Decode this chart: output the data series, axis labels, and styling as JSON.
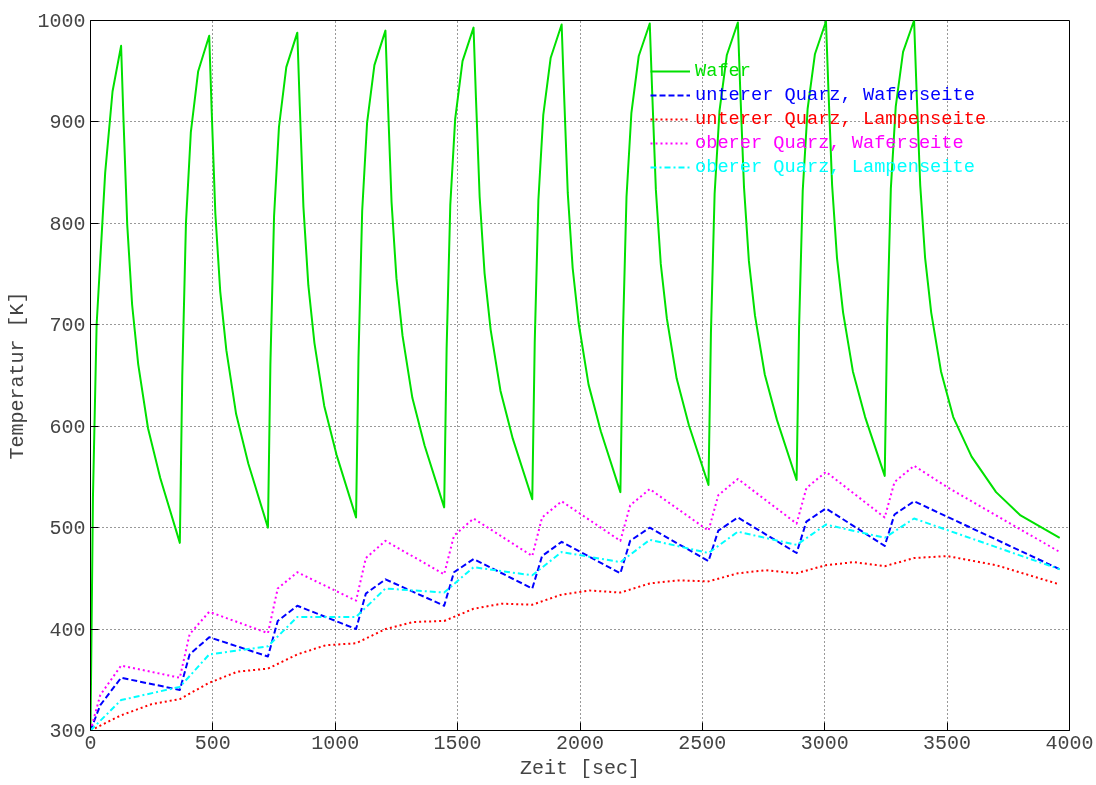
{
  "chart_data": {
    "type": "line",
    "xlabel": "Zeit [sec]",
    "ylabel": "Temperatur [K]",
    "xlim": [
      0,
      4000
    ],
    "ylim": [
      300,
      1000
    ],
    "xticks": [
      0,
      500,
      1000,
      1500,
      2000,
      2500,
      3000,
      3500,
      4000
    ],
    "yticks": [
      300,
      400,
      500,
      600,
      700,
      800,
      900,
      1000
    ],
    "grid": true,
    "legend": "top right",
    "series": [
      {
        "name": "Wafer",
        "color": "#00e000",
        "line_style": "solid",
        "x": [
          0,
          10,
          25,
          60,
          90,
          125,
          135,
          150,
          170,
          195,
          235,
          285,
          365,
          375,
          390,
          410,
          440,
          485,
          495,
          510,
          530,
          555,
          595,
          645,
          725,
          735,
          750,
          770,
          800,
          845,
          855,
          870,
          890,
          915,
          955,
          1005,
          1085,
          1095,
          1110,
          1130,
          1160,
          1205,
          1215,
          1230,
          1250,
          1275,
          1315,
          1365,
          1445,
          1455,
          1470,
          1490,
          1520,
          1565,
          1575,
          1590,
          1610,
          1635,
          1675,
          1725,
          1805,
          1815,
          1830,
          1850,
          1880,
          1925,
          1935,
          1950,
          1970,
          1995,
          2035,
          2085,
          2165,
          2175,
          2190,
          2210,
          2240,
          2285,
          2295,
          2310,
          2330,
          2355,
          2395,
          2445,
          2525,
          2535,
          2550,
          2570,
          2600,
          2645,
          2655,
          2670,
          2690,
          2715,
          2755,
          2805,
          2885,
          2895,
          2910,
          2930,
          2960,
          3005,
          3015,
          3030,
          3050,
          3075,
          3115,
          3165,
          3245,
          3255,
          3270,
          3290,
          3320,
          3365,
          3375,
          3390,
          3410,
          3435,
          3475,
          3525,
          3600,
          3700,
          3800,
          3960
        ],
        "values": [
          300,
          530,
          700,
          850,
          930,
          975,
          901,
          799,
          720,
          661,
          598,
          549,
          485,
          650,
          800,
          890,
          950,
          985,
          912,
          810,
          733,
          675,
          612,
          563,
          500,
          661,
          807,
          895,
          954,
          988,
          916,
          816,
          739,
          682,
          620,
          572,
          510,
          668,
          812,
          899,
          956,
          990,
          920,
          821,
          746,
          689,
          628,
          581,
          520,
          676,
          818,
          903,
          960,
          993,
          923,
          826,
          751,
          695,
          635,
          588,
          528,
          682,
          823,
          907,
          963,
          996,
          927,
          830,
          756,
          701,
          641,
          595,
          535,
          687,
          826,
          909,
          965,
          997,
          929,
          833,
          760,
          706,
          647,
          601,
          542,
          692,
          829,
          911,
          966,
          998,
          930,
          836,
          763,
          709,
          651,
          606,
          547,
          696,
          832,
          913,
          967,
          999,
          932,
          838,
          766,
          712,
          654,
          609,
          551,
          699,
          834,
          915,
          969,
          1000,
          932,
          838,
          766,
          712,
          654,
          609,
          570,
          535,
          512,
          490
        ]
      },
      {
        "name": "unterer Quarz, Waferseite",
        "color": "#0000ff",
        "line_style": "dashed",
        "x": [
          0,
          40,
          125,
          365,
          405,
          485,
          725,
          765,
          845,
          1085,
          1125,
          1205,
          1445,
          1485,
          1565,
          1805,
          1845,
          1925,
          2165,
          2205,
          2285,
          2525,
          2565,
          2645,
          2885,
          2925,
          3005,
          3245,
          3285,
          3365,
          3960
        ],
        "values": [
          300,
          325,
          352,
          340,
          375,
          392,
          373,
          408,
          423,
          400,
          435,
          449,
          423,
          456,
          469,
          440,
          472,
          486,
          455,
          487,
          500,
          467,
          497,
          510,
          475,
          506,
          519,
          482,
          513,
          526,
          459
        ]
      },
      {
        "name": "unterer Quarz, Lampenseite",
        "color": "#ff0000",
        "line_style": "dotted",
        "x": [
          0,
          125,
          250,
          365,
          485,
          600,
          725,
          845,
          960,
          1085,
          1205,
          1320,
          1445,
          1565,
          1680,
          1805,
          1925,
          2040,
          2165,
          2285,
          2400,
          2525,
          2645,
          2760,
          2885,
          3005,
          3120,
          3245,
          3365,
          3500,
          3700,
          3960
        ],
        "values": [
          300,
          315,
          326,
          331,
          347,
          358,
          361,
          375,
          384,
          386,
          400,
          407,
          408,
          420,
          425,
          424,
          434,
          438,
          436,
          445,
          448,
          447,
          455,
          458,
          455,
          463,
          466,
          462,
          470,
          472,
          463,
          444
        ]
      },
      {
        "name": "oberer Quarz, Waferseite",
        "color": "#ff00ff",
        "line_style": "dotted",
        "x": [
          0,
          40,
          125,
          365,
          405,
          485,
          725,
          765,
          845,
          1085,
          1125,
          1205,
          1445,
          1485,
          1565,
          1805,
          1845,
          1925,
          2165,
          2205,
          2285,
          2525,
          2565,
          2645,
          2885,
          2925,
          3005,
          3245,
          3285,
          3365,
          3500,
          3960
        ],
        "values": [
          300,
          335,
          364,
          352,
          395,
          417,
          396,
          440,
          456,
          428,
          470,
          487,
          454,
          492,
          509,
          472,
          510,
          526,
          487,
          522,
          538,
          497,
          532,
          548,
          504,
          539,
          555,
          510,
          545,
          561,
          540,
          476
        ]
      },
      {
        "name": "oberer Quarz, Lampenseite",
        "color": "#00ffff",
        "line_style": "dashdot",
        "x": [
          0,
          125,
          365,
          485,
          725,
          845,
          1085,
          1205,
          1445,
          1565,
          1805,
          1925,
          2165,
          2285,
          2525,
          2645,
          2885,
          3005,
          3245,
          3365,
          3960
        ],
        "values": [
          300,
          330,
          343,
          375,
          383,
          412,
          412,
          440,
          436,
          461,
          453,
          476,
          466,
          488,
          475,
          496,
          483,
          503,
          490,
          509,
          459
        ]
      }
    ]
  }
}
